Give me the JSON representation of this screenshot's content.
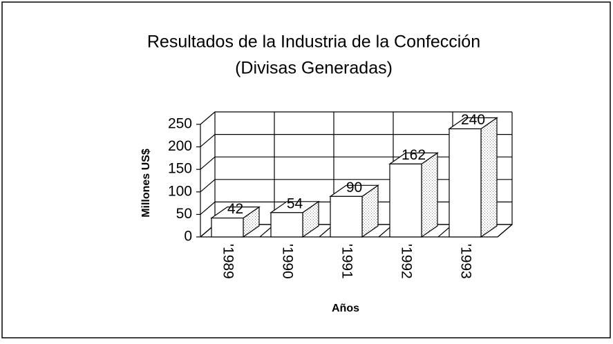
{
  "chart_data": {
    "type": "bar3d",
    "title": "Resultados de la Industria de la Confección",
    "subtitle": "(Divisas Generadas)",
    "x_label": "Años",
    "y_label": "Millones US$",
    "categories": [
      "'1989",
      "'1990",
      "'1991",
      "'1992",
      "'1993"
    ],
    "values": [
      42,
      54,
      90,
      162,
      240
    ],
    "color": "#ffffff",
    "ylim": [
      0,
      250
    ],
    "yticks": [
      0,
      50,
      100,
      150,
      200,
      250
    ],
    "grid": true
  }
}
